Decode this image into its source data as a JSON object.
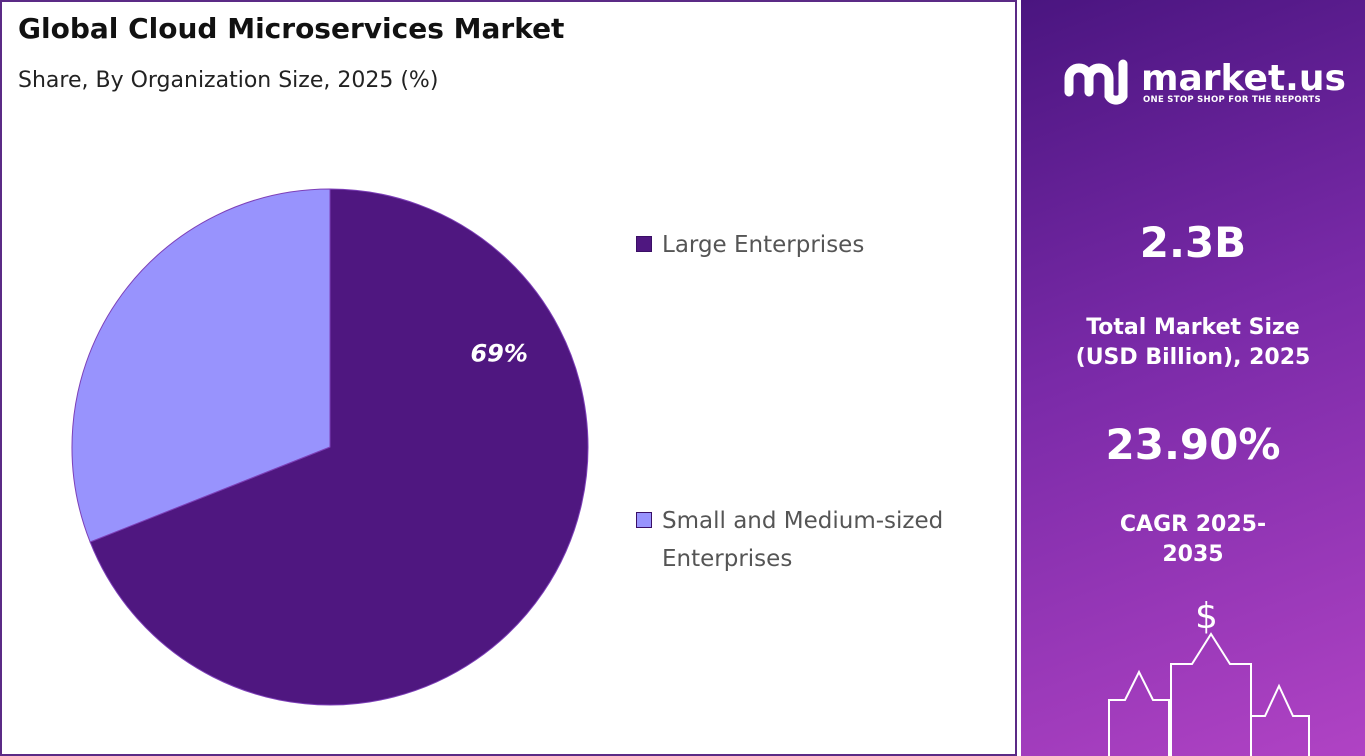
{
  "chart_data": {
    "type": "pie",
    "title": "Global Cloud Microservices Market",
    "subtitle": "Share, By Organization Size, 2025 (%)",
    "categories": [
      "Large Enterprises",
      "Small and Medium-sized Enterprises"
    ],
    "values": [
      69,
      31
    ],
    "value_labels": [
      "69%",
      null
    ],
    "colors": [
      "#4f1780",
      "#9893fd"
    ]
  },
  "sidebar": {
    "brand": "market.us",
    "tagline": "ONE STOP SHOP FOR THE REPORTS",
    "market_size": "2.3B",
    "market_size_label": "Total Market Size (USD Billion), 2025",
    "cagr": "23.90%",
    "cagr_label": "CAGR 2025-2035"
  }
}
